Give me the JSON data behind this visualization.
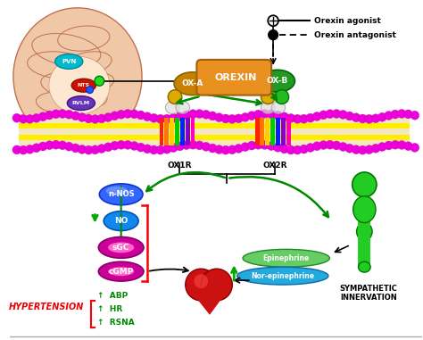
{
  "bg_color": "#ffffff",
  "pvn_label": "PVN",
  "nts_label": "NTS",
  "rvlm_label": "RVLM",
  "orexin_label": "OREXIN",
  "oxa_label": "OX-A",
  "oxb_label": "OX-B",
  "ox1r_label": "OX1R",
  "ox2r_label": "OX2R",
  "agonist_label": "Orexin agonist",
  "antagonist_label": "Orexin antagonist",
  "nnos_label": "n-NOS",
  "no_label": "NO",
  "sgc_label": "sGC",
  "cgmp_label": "cGMP",
  "hypertension_label": "HYPERTENSION",
  "abp_label": "ABP",
  "hr_label": "HR",
  "rsna_label": "RSNA",
  "symp_label": "SYMPATHETIC\nINNERVATION",
  "epi_label": "Epinephrine",
  "norepi_label": "Nor-epinephrine",
  "membrane_magenta": "#ee00ee",
  "membrane_yellow": "#ffff00",
  "orexin_orange": "#e8a020",
  "oxa_gold": "#c88800",
  "oxb_green": "#007700",
  "green_arrow": "#008800",
  "green_bright": "#00cc00",
  "blue_nnos": "#2255ff",
  "cyan_no": "#00aaff",
  "magenta_sgc": "#cc0099",
  "red_text": "#ee0000",
  "green_text": "#008800",
  "black": "#000000"
}
